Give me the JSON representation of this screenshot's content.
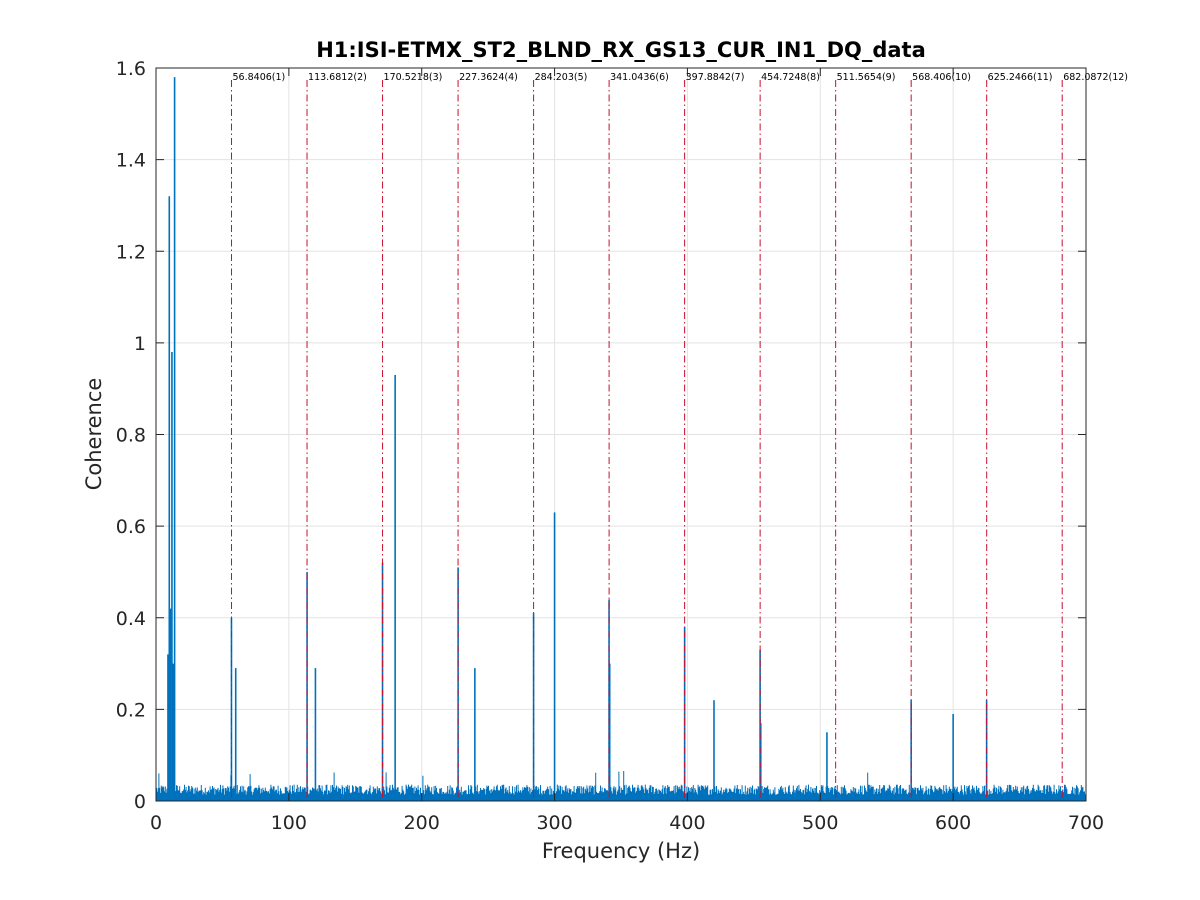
{
  "chart_data": {
    "type": "line",
    "title": "H1:ISI-ETMX_ST2_BLND_RX_GS13_CUR_IN1_DQ_data",
    "xlabel": "Frequency (Hz)",
    "ylabel": "Coherence",
    "xlim": [
      0,
      700
    ],
    "ylim": [
      0,
      1.6
    ],
    "xticks": [
      "0",
      "100",
      "200",
      "300",
      "400",
      "500",
      "600",
      "700"
    ],
    "yticks": [
      "0",
      "0.2",
      "0.4",
      "0.6",
      "0.8",
      "1",
      "1.2",
      "1.4",
      "1.6"
    ],
    "grid": true,
    "series_color": "#0072BD",
    "harmonic_line_color": "#C8102E",
    "noise_floor": {
      "x_range": [
        0,
        700
      ],
      "typical": 0.025,
      "max": 0.06
    },
    "series": [
      {
        "peaks": [
          {
            "x": 9,
            "y": 0.32
          },
          {
            "x": 10,
            "y": 1.32
          },
          {
            "x": 11,
            "y": 0.42
          },
          {
            "x": 12,
            "y": 0.98
          },
          {
            "x": 13,
            "y": 0.3
          },
          {
            "x": 14,
            "y": 1.58
          },
          {
            "x": 56.8,
            "y": 0.4
          },
          {
            "x": 60,
            "y": 0.29
          },
          {
            "x": 113.7,
            "y": 0.5
          },
          {
            "x": 120,
            "y": 0.29
          },
          {
            "x": 170.5,
            "y": 0.52
          },
          {
            "x": 180,
            "y": 0.93
          },
          {
            "x": 227.4,
            "y": 0.51
          },
          {
            "x": 240,
            "y": 0.29
          },
          {
            "x": 284.2,
            "y": 0.41
          },
          {
            "x": 300,
            "y": 0.63
          },
          {
            "x": 341,
            "y": 0.44
          },
          {
            "x": 341.5,
            "y": 0.3
          },
          {
            "x": 397.9,
            "y": 0.38
          },
          {
            "x": 420,
            "y": 0.22
          },
          {
            "x": 454.7,
            "y": 0.33
          },
          {
            "x": 455.2,
            "y": 0.17
          },
          {
            "x": 505,
            "y": 0.15
          },
          {
            "x": 568.4,
            "y": 0.22
          },
          {
            "x": 600,
            "y": 0.19
          },
          {
            "x": 625.2,
            "y": 0.22
          }
        ]
      }
    ],
    "harmonics": [
      {
        "freq": 56.8406,
        "label": "56.8406(1)"
      },
      {
        "freq": 113.6812,
        "label": "113.6812(2)"
      },
      {
        "freq": 170.5218,
        "label": "170.5218(3)"
      },
      {
        "freq": 227.3624,
        "label": "227.3624(4)"
      },
      {
        "freq": 284.203,
        "label": "284.203(5)"
      },
      {
        "freq": 341.0436,
        "label": "341.0436(6)"
      },
      {
        "freq": 397.8842,
        "label": "397.8842(7)"
      },
      {
        "freq": 454.7248,
        "label": "454.7248(8)"
      },
      {
        "freq": 511.5654,
        "label": "511.5654(9)"
      },
      {
        "freq": 568.406,
        "label": "568.406(10)"
      },
      {
        "freq": 625.2466,
        "label": "625.2466(11)"
      },
      {
        "freq": 682.0872,
        "label": "682.0872(12)"
      }
    ]
  }
}
